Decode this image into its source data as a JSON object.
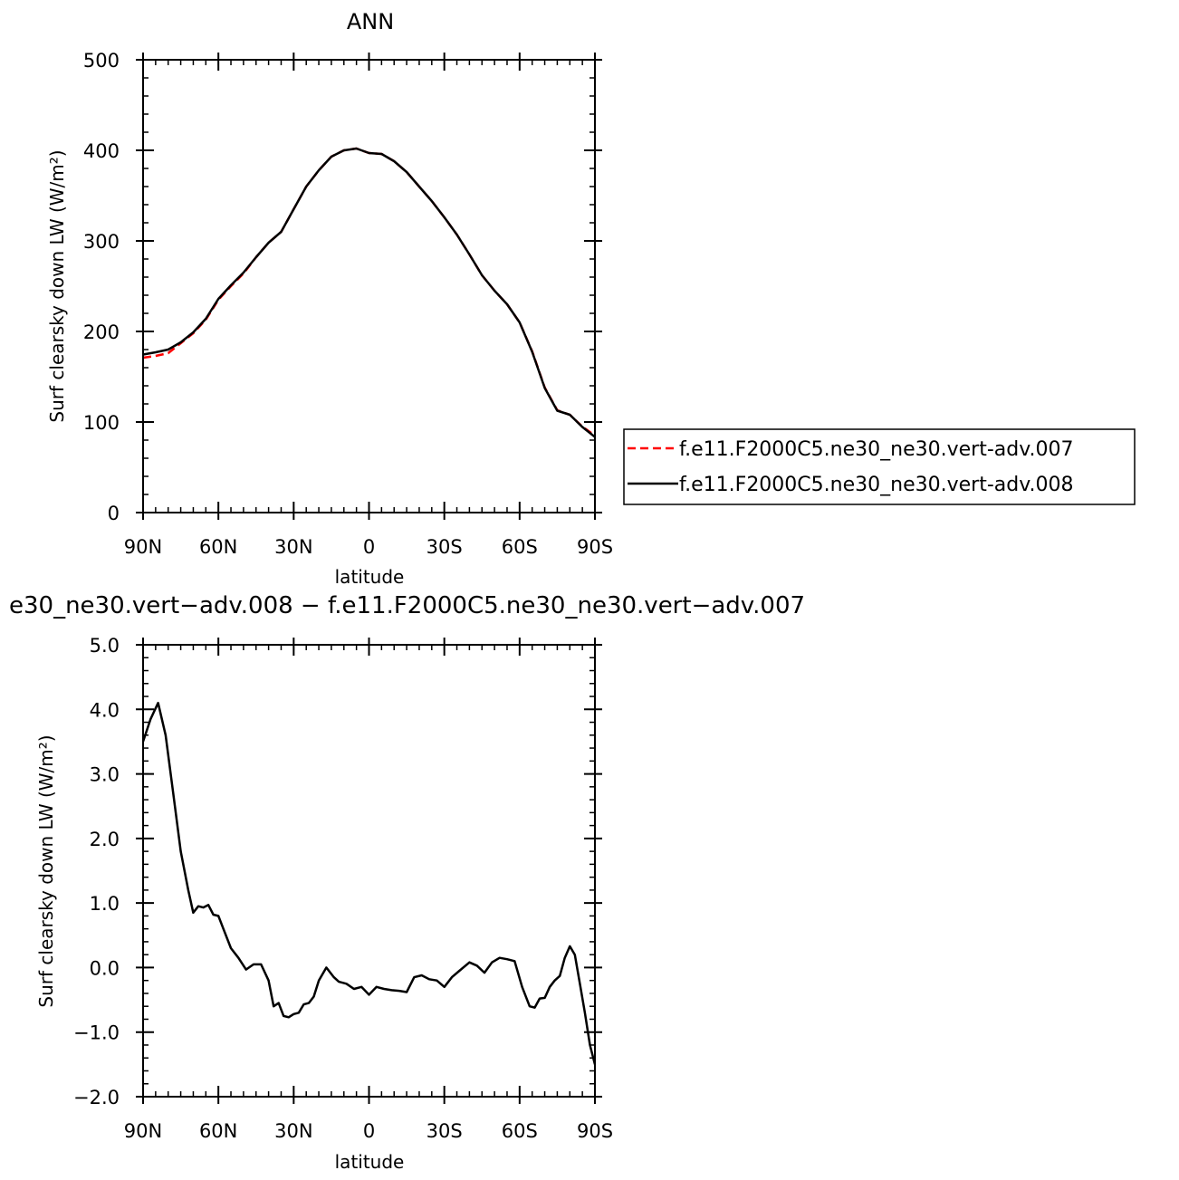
{
  "chart_data": [
    {
      "type": "line",
      "title": "ANN",
      "xlabel": "latitude",
      "ylabel": "Surf clearsky down LW (W/m²)",
      "x_ticks": [
        "90N",
        "60N",
        "30N",
        "0",
        "30S",
        "60S",
        "90S"
      ],
      "x_tick_values": [
        90,
        60,
        30,
        0,
        -30,
        -60,
        -90
      ],
      "xlim": [
        90,
        -90
      ],
      "ylim": [
        0,
        500
      ],
      "y_ticks": [
        "0",
        "100",
        "200",
        "300",
        "400",
        "500"
      ],
      "y_tick_values": [
        0,
        100,
        200,
        300,
        400,
        500
      ],
      "grid": false,
      "legend_placement": "right, outside plot",
      "x": [
        90,
        85,
        80,
        75,
        70,
        65,
        60,
        55,
        50,
        45,
        40,
        35,
        30,
        25,
        20,
        15,
        10,
        5,
        0,
        -5,
        -10,
        -15,
        -20,
        -25,
        -30,
        -35,
        -40,
        -45,
        -50,
        -55,
        -60,
        -65,
        -70,
        -75,
        -80,
        -85,
        -90
      ],
      "series": [
        {
          "name": "f.e11.F2000C5.ne30_ne30.vert-adv.007",
          "color": "#ff0000",
          "dash": "dashed",
          "values": [
            171,
            173,
            176,
            187,
            198,
            213,
            235,
            250,
            264,
            282,
            298,
            310,
            335,
            360,
            378,
            393,
            400,
            402,
            397,
            396,
            388,
            376,
            360,
            344,
            326,
            307,
            285,
            262,
            245,
            230,
            210,
            178,
            138,
            113,
            108,
            95,
            85
          ]
        },
        {
          "name": "f.e11.F2000C5.ne30_ne30.vert-adv.008",
          "color": "#000000",
          "dash": "solid",
          "values": [
            174.5,
            177,
            180,
            188,
            199,
            214,
            236,
            251,
            265,
            282,
            298,
            310,
            335,
            360,
            378,
            393,
            400,
            402,
            397,
            396,
            388,
            376,
            360,
            344,
            326,
            307,
            285,
            262,
            245,
            230,
            210,
            177.5,
            137.5,
            112.5,
            108,
            94.5,
            83.5
          ]
        }
      ]
    },
    {
      "type": "line",
      "title": "e30_ne30.vert−adv.008 − f.e11.F2000C5.ne30_ne30.vert−adv.007",
      "xlabel": "latitude",
      "ylabel": "Surf clearsky down LW (W/m²)",
      "x_ticks": [
        "90N",
        "60N",
        "30N",
        "0",
        "30S",
        "60S",
        "90S"
      ],
      "x_tick_values": [
        90,
        60,
        30,
        0,
        -30,
        -60,
        -90
      ],
      "xlim": [
        90,
        -90
      ],
      "ylim": [
        -2.0,
        5.0
      ],
      "y_ticks": [
        "−2.0",
        "−1.0",
        "0.0",
        "1.0",
        "2.0",
        "3.0",
        "4.0",
        "5.0"
      ],
      "y_tick_values": [
        -2,
        -1,
        0,
        1,
        2,
        3,
        4,
        5
      ],
      "grid": false,
      "x": [
        90,
        87,
        84,
        81,
        78,
        75,
        72,
        70,
        68,
        66,
        64,
        62,
        60,
        58,
        55,
        52,
        49,
        46,
        43,
        40,
        38,
        36,
        34,
        32,
        30,
        28,
        26,
        24,
        22,
        20,
        17,
        14,
        12,
        9,
        6,
        3,
        0,
        -3,
        -6,
        -9,
        -12,
        -15,
        -18,
        -21,
        -24,
        -27,
        -30,
        -33,
        -36,
        -40,
        -43,
        -46,
        -49,
        -52,
        -55,
        -58,
        -61,
        -64,
        -66,
        -68,
        -70,
        -72,
        -74,
        -76,
        -78,
        -80,
        -82,
        -84,
        -86,
        -88,
        -90
      ],
      "series": [
        {
          "name": "",
          "color": "#000000",
          "dash": "solid",
          "values": [
            3.5,
            3.85,
            4.1,
            3.6,
            2.7,
            1.8,
            1.2,
            0.85,
            0.95,
            0.93,
            0.97,
            0.82,
            0.8,
            0.6,
            0.3,
            0.15,
            -0.03,
            0.05,
            0.05,
            -0.2,
            -0.6,
            -0.55,
            -0.75,
            -0.77,
            -0.72,
            -0.7,
            -0.57,
            -0.55,
            -0.45,
            -0.2,
            0.0,
            -0.15,
            -0.22,
            -0.25,
            -0.33,
            -0.3,
            -0.42,
            -0.3,
            -0.33,
            -0.35,
            -0.36,
            -0.38,
            -0.15,
            -0.12,
            -0.18,
            -0.2,
            -0.3,
            -0.15,
            -0.05,
            0.08,
            0.03,
            -0.08,
            0.08,
            0.15,
            0.13,
            0.1,
            -0.3,
            -0.6,
            -0.62,
            -0.48,
            -0.47,
            -0.3,
            -0.2,
            -0.13,
            0.15,
            0.33,
            0.2,
            -0.25,
            -0.7,
            -1.2,
            -1.5
          ]
        }
      ]
    }
  ]
}
